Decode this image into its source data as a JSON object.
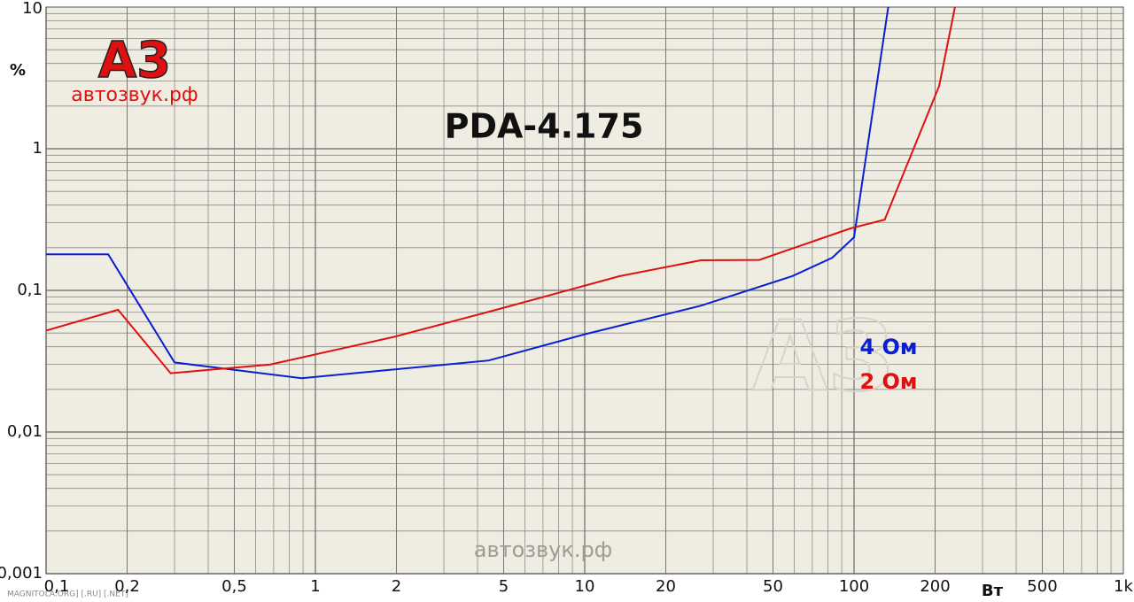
{
  "chart_data": {
    "type": "line",
    "title": "PDA-4.175",
    "logo": "А3",
    "logo_subtitle": "автозвук.рф",
    "watermark": "автозвук.рф",
    "footer": "MAGNITOLA.ORG] [.RU] [.NET]",
    "ylabel": "%",
    "xlabel": "Вт",
    "xlog": true,
    "ylog": true,
    "grid": true,
    "minor_grid": true,
    "xlim": [
      0.1,
      1000
    ],
    "ylim": [
      0.001,
      10
    ],
    "xticks": [
      {
        "value": 0.1,
        "label": "0,1"
      },
      {
        "value": 0.2,
        "label": "0,2"
      },
      {
        "value": 0.5,
        "label": "0,5"
      },
      1,
      2,
      5,
      10,
      20,
      50,
      100,
      200,
      500,
      {
        "value": 1000,
        "label": "1k"
      }
    ],
    "yticks": [
      {
        "value": 0.001,
        "label": "0,001"
      },
      {
        "value": 0.01,
        "label": "0,01"
      },
      {
        "value": 0.1,
        "label": "0,1"
      },
      1,
      10
    ],
    "series": [
      {
        "name": "4 Ом",
        "color": "#0a1ed2",
        "x": [
          0.1,
          0.17,
          0.3,
          0.89,
          4.4,
          10,
          27,
          59,
          83,
          100,
          134
        ],
        "values": [
          0.18,
          0.18,
          0.031,
          0.024,
          0.032,
          0.049,
          0.078,
          0.126,
          0.17,
          0.237,
          10
        ]
      },
      {
        "name": "2 Ом",
        "color": "#e01010",
        "x": [
          0.1,
          0.185,
          0.29,
          0.68,
          1.96,
          4.7,
          13.5,
          27,
          44.5,
          97,
          130,
          207,
          237
        ],
        "values": [
          0.052,
          0.073,
          0.026,
          0.03,
          0.047,
          0.073,
          0.126,
          0.163,
          0.164,
          0.274,
          0.316,
          2.78,
          10
        ]
      }
    ]
  }
}
